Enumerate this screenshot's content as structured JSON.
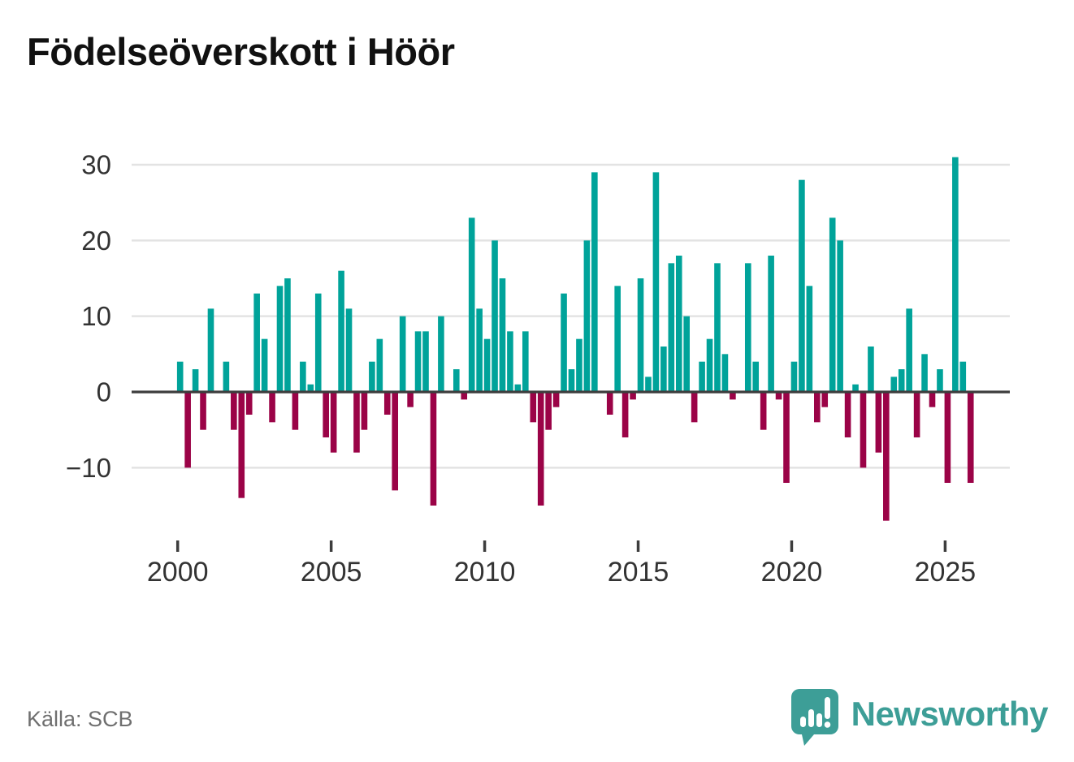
{
  "title": "Födelseöverskott i Höör",
  "source_label": "Källa: SCB",
  "branding": {
    "logo_text": "Newsworthy",
    "logo_icon": "speech-bubble-bar-chart-icon",
    "logo_color": "#3d9e97"
  },
  "colors": {
    "positive_bar": "#00a39a",
    "negative_bar": "#9b0347",
    "axis_line": "#3d3d3d",
    "gridline": "#e3e3e3",
    "tick_text": "#333333",
    "muted_text": "#6f6f6f"
  },
  "chart_data": {
    "type": "bar",
    "title": "Födelseöverskott i Höör",
    "xlabel": "",
    "ylabel": "",
    "x_unit": "quarter",
    "start_year": 2000,
    "end_year": 2025,
    "quarters_per_year": 4,
    "values": [
      4,
      -10,
      3,
      -5,
      11,
      0,
      4,
      -5,
      -14,
      -3,
      13,
      7,
      -4,
      14,
      15,
      -5,
      4,
      1,
      13,
      -6,
      -8,
      16,
      11,
      -8,
      -5,
      4,
      7,
      -3,
      -13,
      10,
      -2,
      8,
      8,
      -15,
      10,
      0,
      3,
      -1,
      23,
      11,
      7,
      20,
      15,
      8,
      1,
      8,
      -4,
      -15,
      -5,
      -2,
      13,
      3,
      7,
      20,
      29,
      0,
      -3,
      14,
      -6,
      -1,
      15,
      2,
      29,
      6,
      17,
      18,
      10,
      -4,
      4,
      7,
      17,
      5,
      -1,
      0,
      17,
      4,
      -5,
      18,
      -1,
      -12,
      4,
      28,
      14,
      -4,
      -2,
      23,
      20,
      -6,
      1,
      -10,
      6,
      -8,
      -17,
      2,
      3,
      11,
      -6,
      5,
      -2,
      3,
      -12,
      31,
      4,
      -12
    ],
    "x_tick_labels": [
      "2000",
      "2005",
      "2010",
      "2015",
      "2020",
      "2025"
    ],
    "y_tick_labels": [
      "30",
      "20",
      "10",
      "0",
      "−10"
    ],
    "y_ticks": [
      30,
      20,
      10,
      0,
      -10
    ],
    "ylim": [
      -17,
      31
    ],
    "grid": true,
    "legend": false
  }
}
